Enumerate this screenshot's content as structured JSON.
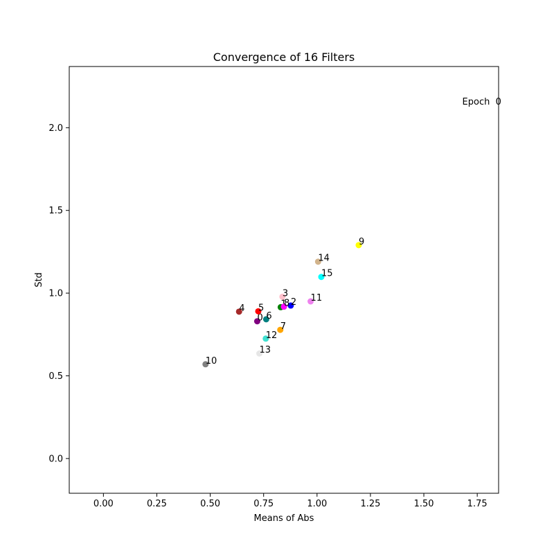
{
  "chart_data": {
    "type": "scatter",
    "title": "Convergence of 16 Filters",
    "xlabel": "Means of Abs",
    "ylabel": "Std",
    "xlim": [
      -0.16,
      1.85
    ],
    "ylim": [
      -0.21,
      2.37
    ],
    "xticks": [
      0.0,
      0.25,
      0.5,
      0.75,
      1.0,
      1.25,
      1.5,
      1.75
    ],
    "xtick_labels": [
      "0.00",
      "0.25",
      "0.50",
      "0.75",
      "1.00",
      "1.25",
      "1.50",
      "1.75"
    ],
    "yticks": [
      0.0,
      0.5,
      1.0,
      1.5,
      2.0
    ],
    "ytick_labels": [
      "0.0",
      "0.5",
      "1.0",
      "1.5",
      "2.0"
    ],
    "grid": false,
    "annotation": {
      "text": "Epoch  0",
      "x": 1.68,
      "y": 2.16
    },
    "points": [
      {
        "label": "0",
        "x": 0.72,
        "y": 0.83,
        "color": "#800080"
      },
      {
        "label": "1",
        "x": 0.83,
        "y": 0.915,
        "color": "#008000"
      },
      {
        "label": "2",
        "x": 0.877,
        "y": 0.925,
        "color": "#0000ff"
      },
      {
        "label": "3",
        "x": 0.838,
        "y": 0.978,
        "color": "#ffc0cb"
      },
      {
        "label": "4",
        "x": 0.635,
        "y": 0.888,
        "color": "#a52a2a"
      },
      {
        "label": "5",
        "x": 0.725,
        "y": 0.89,
        "color": "#ff0000"
      },
      {
        "label": "6",
        "x": 0.762,
        "y": 0.842,
        "color": "#008080"
      },
      {
        "label": "7",
        "x": 0.828,
        "y": 0.778,
        "color": "#ffa500"
      },
      {
        "label": "8",
        "x": 0.845,
        "y": 0.918,
        "color": "#ff00ff"
      },
      {
        "label": "9",
        "x": 1.195,
        "y": 1.29,
        "color": "#ffff00"
      },
      {
        "label": "10",
        "x": 0.478,
        "y": 0.57,
        "color": "#808080"
      },
      {
        "label": "11",
        "x": 0.97,
        "y": 0.95,
        "color": "#ee82ee"
      },
      {
        "label": "12",
        "x": 0.76,
        "y": 0.725,
        "color": "#40e0d0"
      },
      {
        "label": "13",
        "x": 0.73,
        "y": 0.635,
        "color": "#e6e6e6"
      },
      {
        "label": "14",
        "x": 1.005,
        "y": 1.19,
        "color": "#d2b48c"
      },
      {
        "label": "15",
        "x": 1.02,
        "y": 1.098,
        "color": "#00ffff"
      }
    ]
  }
}
